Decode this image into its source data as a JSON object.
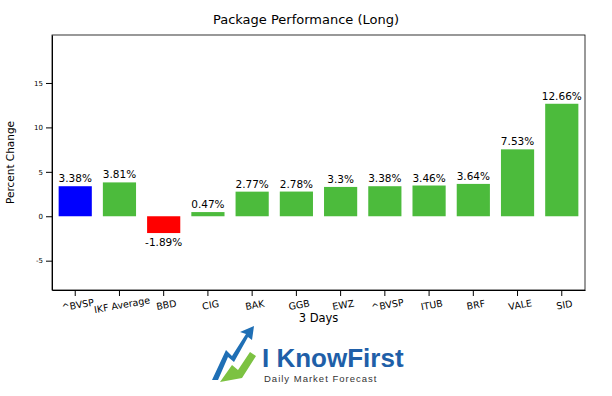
{
  "chart_data": {
    "type": "bar",
    "title": "Package Performance (Long)",
    "x_label": "3 Days",
    "y_label": "Percent Change",
    "categories": [
      "^BVSP",
      "IKF Average",
      "BBD",
      "CIG",
      "BAK",
      "GGB",
      "EWZ",
      "^BVSP",
      "ITUB",
      "BRF",
      "VALE",
      "SID"
    ],
    "values": [
      3.38,
      3.81,
      -1.89,
      0.47,
      2.77,
      2.78,
      3.3,
      3.38,
      3.46,
      3.64,
      7.53,
      12.66
    ],
    "value_labels": [
      "3.38%",
      "3.81%",
      "-1.89%",
      "0.47%",
      "2.77%",
      "2.78%",
      "3.3%",
      "3.38%",
      "3.46%",
      "3.64%",
      "7.53%",
      "12.66%"
    ],
    "colors": [
      "#0000ff",
      "#4cbb3c",
      "#ff0000",
      "#4cbb3c",
      "#4cbb3c",
      "#4cbb3c",
      "#4cbb3c",
      "#4cbb3c",
      "#4cbb3c",
      "#4cbb3c",
      "#4cbb3c",
      "#4cbb3c"
    ],
    "ylim": [
      -8.3,
      20.4
    ],
    "yticks": [
      -5,
      0,
      5,
      10,
      15
    ],
    "grid": false,
    "data_labels": true,
    "annotations": [
      "I KnowFirst",
      "Daily Market Forecast"
    ]
  }
}
